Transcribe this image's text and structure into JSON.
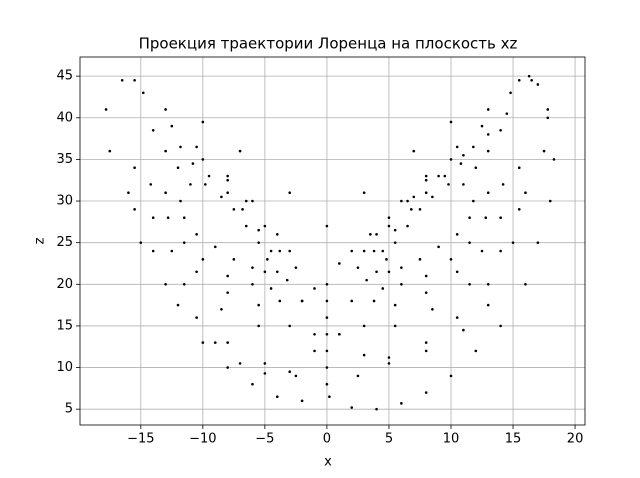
{
  "chart_data": {
    "type": "scatter",
    "title": "Проекция траектории Лоренца на плоскость xz",
    "xlabel": "x",
    "ylabel": "z",
    "color": "#000000",
    "grid": true,
    "xlim": [
      -19.9,
      20.8
    ],
    "ylim": [
      3.1,
      47.3
    ],
    "xticks": [
      {
        "value": -15,
        "label": "−15"
      },
      {
        "value": -10,
        "label": "−10"
      },
      {
        "value": -5,
        "label": "−5"
      },
      0,
      5,
      10,
      15,
      20
    ],
    "yticks": [
      5,
      10,
      15,
      20,
      25,
      30,
      35,
      40,
      45
    ],
    "x": [
      -11,
      -11.8,
      -11.5,
      -10.5,
      -9,
      -7.5,
      -6,
      -5,
      -4.8,
      -5.5,
      -6.5,
      -7.5,
      -8.5,
      -9.8,
      -12,
      -13,
      -12.8,
      -11.5,
      -10,
      -8,
      -6,
      -4.5,
      -4,
      -4.5,
      -5.5,
      -6.8,
      -8,
      -9.5,
      -10.8,
      -13,
      -14.2,
      -14,
      -12.5,
      -10.5,
      -8,
      -5.5,
      -3.8,
      -3.2,
      -3.8,
      -5,
      -6.5,
      -8,
      -10,
      -11.8,
      -14,
      -15.5,
      -15.5,
      -14,
      -11.5,
      -8.5,
      -5.5,
      -3,
      -2,
      -2.5,
      -4,
      -6,
      -8,
      -10.5,
      -12.5,
      -16.5,
      -17.8,
      -17.5,
      -16,
      -15,
      -13,
      -10.5,
      -8,
      -5,
      -2.5,
      -1,
      -15.5,
      -14.8,
      -13,
      -10,
      -7,
      -3,
      0,
      3,
      11,
      11.8,
      11.5,
      10.5,
      9,
      7.5,
      6,
      5,
      4.8,
      5.5,
      6.5,
      7.5,
      8.5,
      9.8,
      12,
      13,
      12.8,
      11.5,
      10,
      8,
      6,
      4.5,
      4,
      4.5,
      5.5,
      6.8,
      8,
      9.5,
      10.8,
      13,
      14.2,
      14,
      12.5,
      10.5,
      8,
      5.5,
      3.8,
      3.2,
      3.8,
      5,
      6.5,
      8,
      10,
      11.8,
      14,
      15.5,
      15.5,
      14,
      11.5,
      8.5,
      5.5,
      3,
      2,
      2.5,
      4,
      6,
      8,
      10.5,
      12.5,
      16.5,
      17.8,
      17.5,
      16,
      15,
      13,
      10.5,
      8,
      5,
      2.5,
      1,
      15.5,
      14.8,
      13,
      10,
      7,
      3,
      -3,
      0,
      0,
      0,
      0,
      0,
      0,
      0,
      0.2,
      -2,
      -4,
      -6,
      -8,
      -10,
      -12,
      2,
      4,
      6,
      8,
      10,
      12,
      14,
      16,
      17,
      18,
      18.3,
      17.8,
      17,
      16.3,
      -2,
      -1,
      1,
      2,
      3.5,
      5,
      7,
      9,
      11,
      13,
      14.5,
      1,
      3,
      5,
      8,
      11,
      13,
      -1,
      -3,
      -5,
      -7,
      -9
    ],
    "values": [
      32,
      30,
      28,
      26,
      24.5,
      23,
      22,
      21.5,
      23,
      25,
      27,
      29,
      30.5,
      32,
      34,
      31,
      28,
      25,
      23,
      21,
      20,
      19.5,
      21.5,
      24,
      26.5,
      29,
      31,
      33,
      34.5,
      36,
      32,
      28,
      24,
      21.5,
      19,
      17.5,
      18,
      20.5,
      24,
      27,
      30,
      32.5,
      35,
      36.5,
      38.5,
      34,
      29,
      24,
      20,
      17,
      15,
      15,
      18,
      22,
      26,
      30,
      33,
      36.5,
      39,
      44.5,
      41,
      36,
      31,
      25,
      20,
      16,
      13,
      10.5,
      9,
      14,
      44.5,
      43,
      41,
      39.5,
      36,
      31,
      27,
      24,
      32,
      30,
      28,
      26,
      24.5,
      23,
      22,
      21.5,
      23,
      25,
      27,
      29,
      30.5,
      32,
      34,
      31,
      28,
      25,
      23,
      21,
      20,
      19.5,
      21.5,
      24,
      26.5,
      29,
      31,
      33,
      34.5,
      36,
      32,
      28,
      24,
      21.5,
      19,
      17.5,
      18,
      20.5,
      24,
      27,
      30,
      32.5,
      35,
      36.5,
      38.5,
      34,
      29,
      24,
      20,
      17,
      15,
      15,
      18,
      22,
      26,
      30,
      33,
      36.5,
      39,
      44.5,
      41,
      36,
      31,
      25,
      20,
      16,
      13,
      10.5,
      9,
      14,
      44.5,
      43,
      41,
      39.5,
      36,
      31,
      24,
      20,
      18,
      16,
      14,
      12,
      10,
      8,
      6.5,
      6,
      6.5,
      8,
      10,
      13,
      17.5,
      5.2,
      5,
      5.7,
      7,
      9,
      12,
      15,
      20,
      25,
      30,
      35,
      40,
      44,
      45,
      18,
      19.5,
      22.5,
      24,
      26,
      28,
      30.5,
      33,
      35.5,
      38,
      40.5,
      14,
      11.5,
      11.2,
      12,
      14.5,
      17.5,
      12,
      9.5,
      9.3,
      10.5,
      13
    ]
  }
}
